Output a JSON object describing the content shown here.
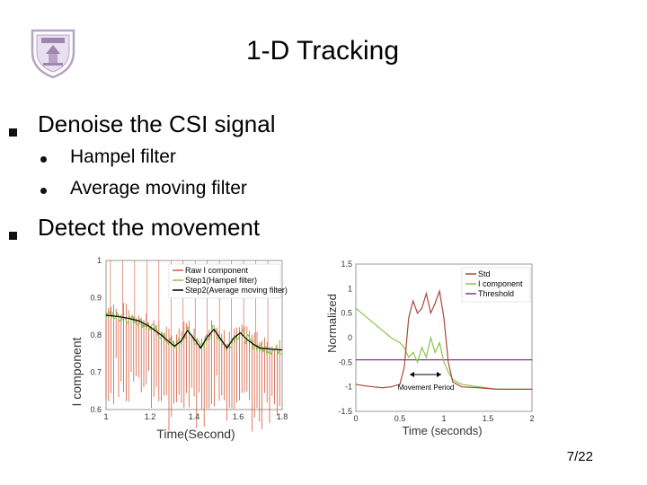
{
  "slide": {
    "title": "1-D Tracking",
    "page_number": "7/22",
    "bullets": [
      {
        "text": "Denoise the CSI signal",
        "subs": [
          "Hampel filter",
          "Average moving filter"
        ]
      },
      {
        "text": "Detect the movement",
        "subs": []
      }
    ]
  },
  "colors": {
    "raw": "#d35a3a",
    "hampel": "#8cc34a",
    "moving": "#000000",
    "std": "#a84a3a",
    "threshold": "#7a3a8a"
  },
  "chart_data": [
    {
      "type": "line",
      "xlabel": "Time(Second)",
      "ylabel": "I component",
      "xlim": [
        1,
        1.8
      ],
      "ylim": [
        0.6,
        1
      ],
      "xticks": [
        "1",
        "1.2",
        "1.4",
        "1.6",
        "1.8"
      ],
      "yticks": [
        "0.6",
        "0.7",
        "0.8",
        "0.9",
        "1"
      ],
      "legend": [
        "Raw I component",
        "Step1(Hampel filter)",
        "Step2(Average moving filter)"
      ],
      "series": [
        {
          "name": "Step2(Average moving filter)",
          "x": [
            1.0,
            1.05,
            1.1,
            1.15,
            1.2,
            1.25,
            1.28,
            1.31,
            1.34,
            1.37,
            1.4,
            1.43,
            1.46,
            1.49,
            1.52,
            1.55,
            1.58,
            1.61,
            1.64,
            1.67,
            1.7,
            1.75,
            1.8
          ],
          "values": [
            0.853,
            0.85,
            0.845,
            0.838,
            0.822,
            0.8,
            0.785,
            0.77,
            0.783,
            0.812,
            0.79,
            0.765,
            0.795,
            0.815,
            0.79,
            0.765,
            0.792,
            0.806,
            0.788,
            0.775,
            0.765,
            0.762,
            0.76
          ]
        }
      ]
    },
    {
      "type": "line",
      "xlabel": "Time (seconds)",
      "ylabel": "Normalized",
      "xlim": [
        0,
        2
      ],
      "ylim": [
        -1.5,
        1.5
      ],
      "xticks": [
        "0",
        "0.5",
        "1",
        "1.5",
        "2"
      ],
      "yticks": [
        "1.5",
        "1",
        "0.5",
        "0",
        "-0.5",
        "-1",
        "-1.5"
      ],
      "legend": [
        "Std",
        "I component",
        "Threshold"
      ],
      "annotation": "Movement Period",
      "series": [
        {
          "name": "Std",
          "x": [
            0,
            0.1,
            0.2,
            0.3,
            0.4,
            0.5,
            0.55,
            0.6,
            0.62,
            0.65,
            0.7,
            0.75,
            0.8,
            0.85,
            0.9,
            0.95,
            1.0,
            1.05,
            1.1,
            1.2,
            1.4,
            1.6,
            1.8,
            2.0
          ],
          "values": [
            -0.95,
            -0.98,
            -1.0,
            -1.02,
            -1.0,
            -0.95,
            -0.6,
            0.4,
            0.55,
            0.75,
            0.5,
            0.6,
            0.9,
            0.5,
            0.7,
            0.95,
            0.4,
            -0.5,
            -0.9,
            -1.0,
            -1.02,
            -1.05,
            -1.05,
            -1.05
          ]
        },
        {
          "name": "I component",
          "x": [
            0,
            0.1,
            0.2,
            0.3,
            0.4,
            0.5,
            0.55,
            0.6,
            0.65,
            0.7,
            0.75,
            0.8,
            0.85,
            0.9,
            0.95,
            1.0,
            1.05,
            1.1,
            1.2,
            1.4,
            1.6,
            1.8,
            2.0
          ],
          "values": [
            0.6,
            0.45,
            0.3,
            0.15,
            0.0,
            -0.1,
            -0.2,
            -0.4,
            -0.3,
            -0.5,
            -0.2,
            -0.4,
            0.0,
            -0.3,
            -0.1,
            -0.5,
            -0.7,
            -0.85,
            -0.95,
            -1.0,
            -1.05,
            -1.05,
            -1.05
          ]
        },
        {
          "name": "Threshold",
          "x": [
            0,
            2
          ],
          "values": [
            -0.45,
            -0.45
          ]
        }
      ]
    }
  ]
}
